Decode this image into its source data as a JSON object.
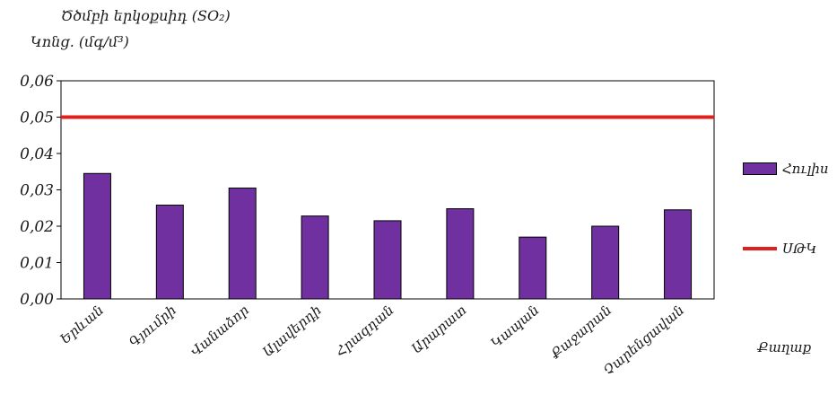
{
  "chart_data": {
    "type": "bar",
    "title": "Ծծմբի երկօքսիդ (SO₂)",
    "ylabel": "Կոնց. (մգ/մ³)",
    "xlabel": "Քաղաք",
    "categories": [
      "Երևան",
      "Գյումրի",
      "Վանաձոր",
      "Ալավերդի",
      "Հրազդան",
      "Արարատ",
      "Կապան",
      "Քաջարան",
      "Չարենցավան"
    ],
    "series": [
      {
        "name": "Հուլիս",
        "values": [
          0.0345,
          0.0258,
          0.0305,
          0.0228,
          0.0215,
          0.0248,
          0.017,
          0.02,
          0.0245
        ],
        "color": "#7030a0"
      }
    ],
    "reference_line": {
      "name": "ՍԹԿ",
      "value": 0.05,
      "color": "#e0201c"
    },
    "ylim": [
      0,
      0.06
    ],
    "yticks": [
      "0,00",
      "0,01",
      "0,02",
      "0,03",
      "0,04",
      "0,05",
      "0,06"
    ],
    "grid": false,
    "legend_position": "right"
  }
}
